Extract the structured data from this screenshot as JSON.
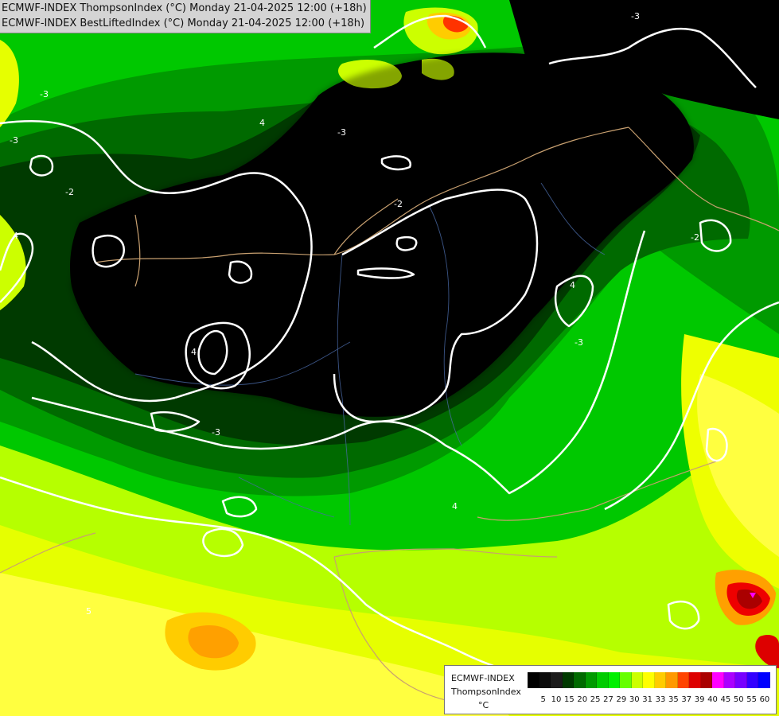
{
  "titles": {
    "line1": "ECMWF-INDEX ThompsonIndex (°C) Monday 21-04-2025 12:00 (+18h)",
    "line2": "ECMWF-INDEX BestLiftedIndex (°C) Monday 21-04-2025 12:00 (+18h)"
  },
  "legend": {
    "model": "ECMWF-INDEX",
    "parameter": "ThompsonIndex",
    "unit": "°C",
    "ticks": [
      "5",
      "10",
      "15",
      "20",
      "25",
      "27",
      "29",
      "30",
      "31",
      "33",
      "35",
      "37",
      "39",
      "40",
      "45",
      "50",
      "55",
      "60"
    ],
    "colors": [
      "#000000",
      "#0c0c0c",
      "#1c1c1c",
      "#003a00",
      "#006a00",
      "#009a00",
      "#00cc00",
      "#00f000",
      "#66ff00",
      "#ccff00",
      "#ffff00",
      "#ffcc00",
      "#ff9900",
      "#ff4400",
      "#dd0000",
      "#aa0000",
      "#ff00ff",
      "#aa00ff",
      "#7700ff",
      "#3300ff",
      "#0000ff"
    ]
  },
  "isoline_labels": [
    "-3",
    "-3",
    "-2",
    "-2",
    "-3",
    "-3",
    "4",
    "4",
    "-3",
    "4",
    "4",
    "-2",
    "-3",
    "4",
    "5"
  ]
}
